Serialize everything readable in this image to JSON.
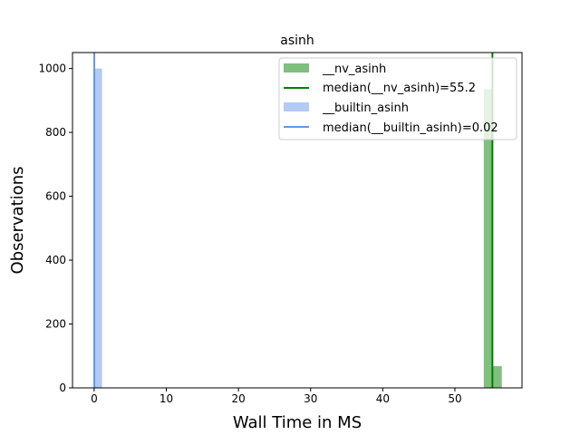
{
  "chart_data": {
    "type": "histogram",
    "title": "asinh",
    "xlabel": "Wall Time in MS",
    "ylabel": "Observations",
    "xlim": [
      -3.0,
      59.3
    ],
    "ylim": [
      0,
      1050
    ],
    "xticks": [
      0,
      10,
      20,
      30,
      40,
      50
    ],
    "yticks": [
      0,
      200,
      400,
      600,
      800,
      1000
    ],
    "grid": false,
    "legend_position": "top-right",
    "series": [
      {
        "name": "__nv_asinh",
        "color": "#008000",
        "opacity": 0.5,
        "bins": [
          {
            "x0": 54.0,
            "x1": 55.2,
            "count": 935
          },
          {
            "x0": 55.2,
            "x1": 56.5,
            "count": 68
          }
        ],
        "median": 55.2,
        "median_label": "median(__nv_asinh)=55.2",
        "median_color": "#008000"
      },
      {
        "name": "__builtin_asinh",
        "color": "#6495ed",
        "opacity": 0.5,
        "bins": [
          {
            "x0": 0.02,
            "x1": 1.1,
            "count": 1000
          }
        ],
        "median": 0.02,
        "median_label": "median(__builtin_asinh)=0.02",
        "median_color": "#6495ed"
      }
    ]
  }
}
